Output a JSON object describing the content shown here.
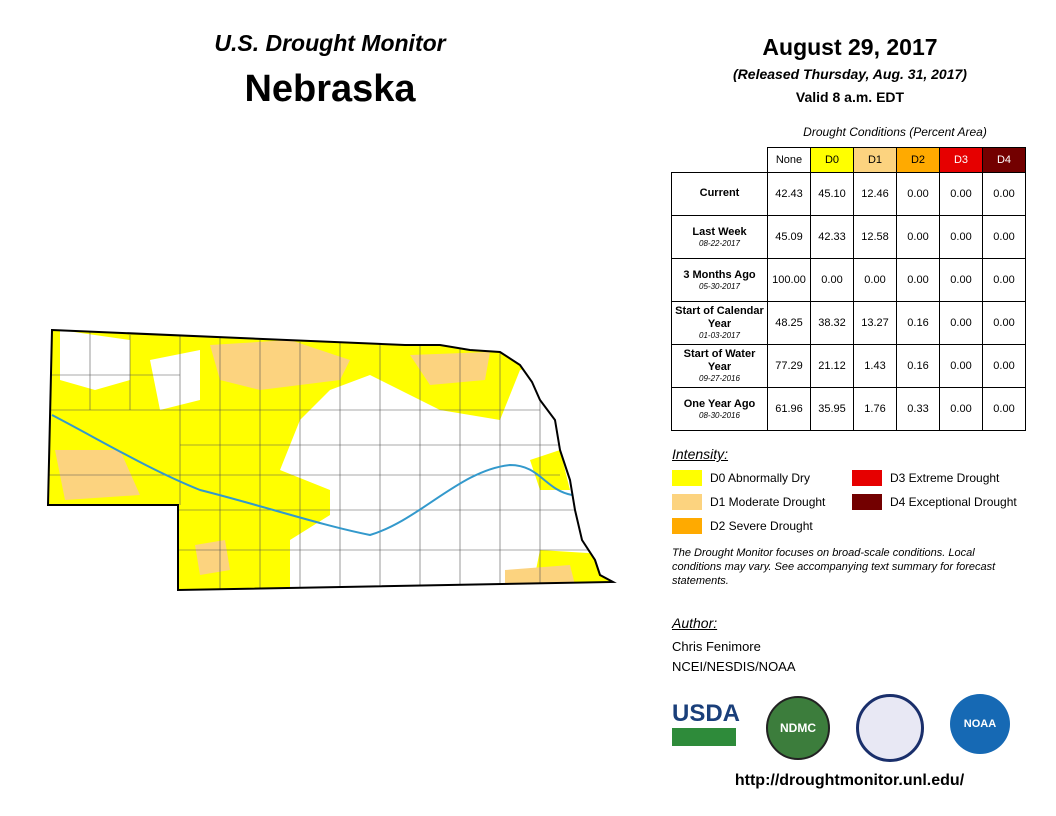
{
  "header": {
    "title": "U.S. Drought Monitor",
    "state": "Nebraska",
    "date": "August 29, 2017",
    "released": "(Released Thursday, Aug. 31, 2017)",
    "valid": "Valid 8 a.m. EDT"
  },
  "table": {
    "caption": "Drought Conditions (Percent Area)",
    "columns": [
      {
        "label": "None",
        "color": "#ffffff",
        "text": "#000000"
      },
      {
        "label": "D0",
        "color": "#ffff00",
        "text": "#000000"
      },
      {
        "label": "D1",
        "color": "#fcd37f",
        "text": "#000000"
      },
      {
        "label": "D2",
        "color": "#ffaa00",
        "text": "#000000"
      },
      {
        "label": "D3",
        "color": "#e60000",
        "text": "#ffffff"
      },
      {
        "label": "D4",
        "color": "#730000",
        "text": "#ffffff"
      }
    ],
    "rows": [
      {
        "label": "Current",
        "values": [
          "42.43",
          "45.10",
          "12.46",
          "0.00",
          "0.00",
          "0.00"
        ]
      },
      {
        "label": "Last Week",
        "date": "08-22-2017",
        "values": [
          "45.09",
          "42.33",
          "12.58",
          "0.00",
          "0.00",
          "0.00"
        ]
      },
      {
        "label": "3 Months Ago",
        "date": "05-30-2017",
        "values": [
          "100.00",
          "0.00",
          "0.00",
          "0.00",
          "0.00",
          "0.00"
        ]
      },
      {
        "label": "Start of Calendar Year",
        "date": "01-03-2017",
        "values": [
          "48.25",
          "38.32",
          "13.27",
          "0.16",
          "0.00",
          "0.00"
        ]
      },
      {
        "label": "Start of Water Year",
        "date": "09-27-2016",
        "values": [
          "77.29",
          "21.12",
          "1.43",
          "0.16",
          "0.00",
          "0.00"
        ]
      },
      {
        "label": "One Year Ago",
        "date": "08-30-2016",
        "values": [
          "61.96",
          "35.95",
          "1.76",
          "0.33",
          "0.00",
          "0.00"
        ]
      }
    ]
  },
  "legend": {
    "title": "Intensity:",
    "items": [
      {
        "label": "D0 Abnormally Dry",
        "color": "#ffff00"
      },
      {
        "label": "D1 Moderate Drought",
        "color": "#fcd37f"
      },
      {
        "label": "D2 Severe Drought",
        "color": "#ffaa00"
      },
      {
        "label": "D3 Extreme Drought",
        "color": "#e60000"
      },
      {
        "label": "D4 Exceptional Drought",
        "color": "#730000"
      }
    ]
  },
  "note": "The Drought Monitor focuses on broad-scale conditions. Local conditions may vary. See accompanying text summary for forecast statements.",
  "author": {
    "title": "Author:",
    "lines": [
      "Chris Fenimore",
      "NCEI/NESDIS/NOAA"
    ]
  },
  "logos": [
    "USDA",
    "NDMC",
    "NOAA"
  ],
  "url": "http://droughtmonitor.unl.edu/"
}
